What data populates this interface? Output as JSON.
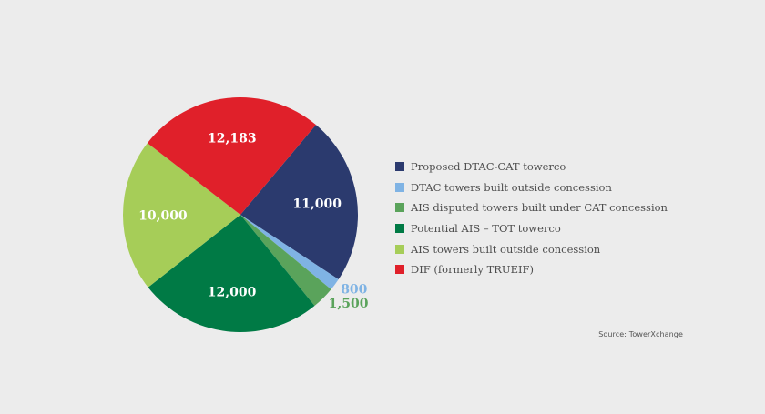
{
  "chart_data": {
    "type": "pie",
    "slices": [
      {
        "label": "Proposed DTAC-CAT towerco",
        "value": 11000,
        "value_label": "11,000",
        "color": "#2b3a6e"
      },
      {
        "label": "DTAC towers built outside concession",
        "value": 800,
        "value_label": "800",
        "color": "#7fb3e4"
      },
      {
        "label": "AIS disputed towers built under CAT concession",
        "value": 1500,
        "value_label": "1,500",
        "color": "#5aa35b"
      },
      {
        "label": "Potential AIS – TOT towerco",
        "value": 12000,
        "value_label": "12,000",
        "color": "#007a45"
      },
      {
        "label": "AIS towers built outside concession",
        "value": 10000,
        "value_label": "10,000",
        "color": "#a6cd58"
      },
      {
        "label": "DIF (formerly TRUEIF)",
        "value": 12183,
        "value_label": "12,183",
        "color": "#e0202a"
      }
    ],
    "legend_position": "right"
  },
  "source": "Source: TowerXchange"
}
